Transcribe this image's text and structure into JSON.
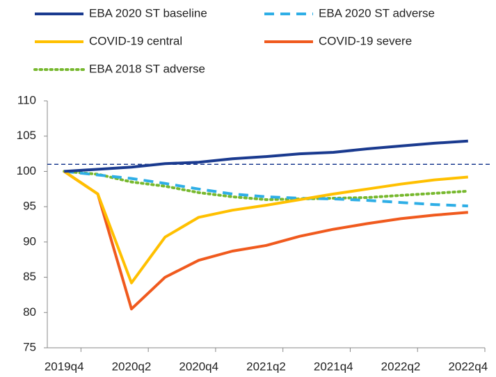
{
  "chart_data": {
    "type": "line",
    "categories": [
      "2019q4",
      null,
      "2020q2",
      null,
      "2020q4",
      null,
      "2021q2",
      null,
      "2021q4",
      null,
      "2022q2",
      null,
      "2022q4"
    ],
    "series": [
      {
        "name": "EBA 2020 ST baseline",
        "color": "#1a3a8f",
        "style": "solid",
        "values": [
          100,
          100.3,
          100.6,
          101.1,
          101.3,
          101.8,
          102.1,
          102.5,
          102.7,
          103.2,
          103.6,
          104.0,
          104.3
        ]
      },
      {
        "name": "EBA 2020 ST adverse",
        "color": "#2eaee6",
        "style": "dashed",
        "values": [
          100,
          99.5,
          99.0,
          98.3,
          97.5,
          96.8,
          96.4,
          96.2,
          96.1,
          95.9,
          95.6,
          95.3,
          95.1
        ]
      },
      {
        "name": "COVID-19 central",
        "color": "#ffc000",
        "style": "solid",
        "values": [
          100,
          96.8,
          84.2,
          90.7,
          93.5,
          94.5,
          95.2,
          96.0,
          96.8,
          97.5,
          98.2,
          98.8,
          99.2
        ]
      },
      {
        "name": "COVID-19 severe",
        "color": "#f05a1e",
        "style": "solid",
        "values": [
          100,
          96.8,
          80.5,
          85.0,
          87.4,
          88.7,
          89.5,
          90.8,
          91.8,
          92.6,
          93.3,
          93.8,
          94.2
        ]
      },
      {
        "name": "EBA 2018 ST adverse",
        "color": "#77b82e",
        "style": "dotted",
        "values": [
          100,
          99.6,
          98.5,
          97.9,
          97.0,
          96.4,
          96.0,
          96.1,
          96.2,
          96.3,
          96.6,
          96.9,
          97.2
        ]
      }
    ],
    "reference_line": 101,
    "ylim": [
      75,
      110
    ],
    "yticks": [
      75,
      80,
      85,
      90,
      95,
      100,
      105,
      110
    ],
    "grid": false
  }
}
